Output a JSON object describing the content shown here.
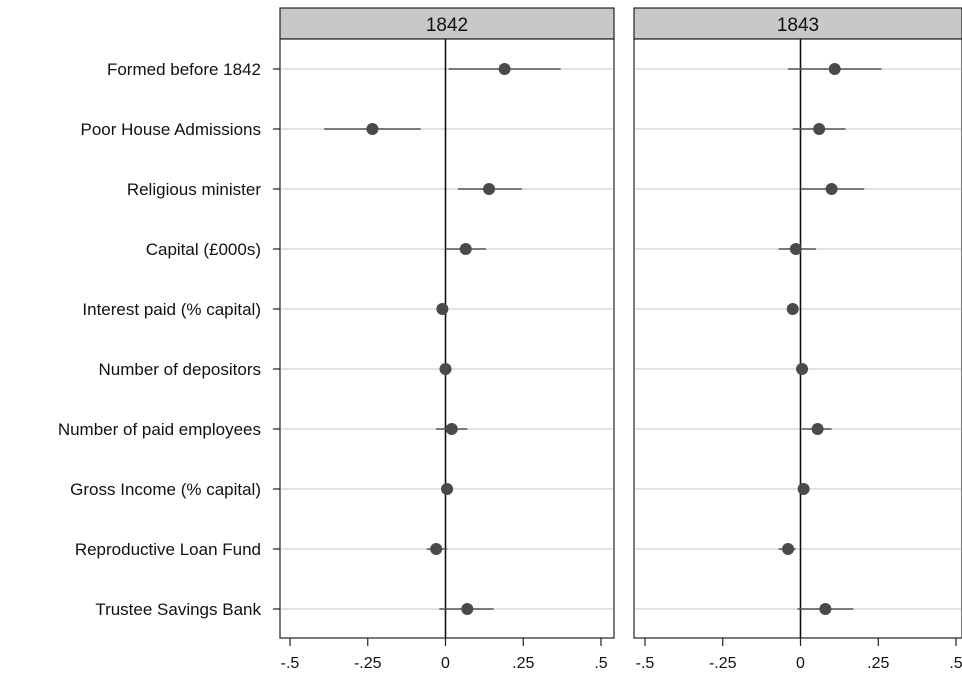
{
  "chart_data": {
    "type": "scatter",
    "subtype": "coefficient-plot-with-confidence-intervals",
    "categories": [
      "Formed before 1842",
      "Poor House Admissions",
      "Religious minister",
      "Capital (£000s)",
      "Interest paid (% capital)",
      "Number of depositors",
      "Number of paid employees",
      "Gross Income (% capital)",
      "Reproductive Loan Fund",
      "Trustee Savings Bank"
    ],
    "x_ticks": [
      -0.5,
      -0.25,
      0,
      0.25,
      0.5
    ],
    "x_tick_labels": [
      "-.5",
      "-.25",
      "0",
      ".25",
      ".5"
    ],
    "xlim": [
      -0.5,
      0.5
    ],
    "reference_line": 0,
    "grid": "horizontal",
    "colors": {
      "point": "#4a4a4a",
      "ci": "#555555",
      "strip": "#c8c8c8",
      "grid": "#d9d9d9"
    },
    "panels": [
      {
        "title": "1842",
        "estimates": [
          0.19,
          -0.235,
          0.14,
          0.065,
          -0.01,
          0.0,
          0.02,
          0.005,
          -0.03,
          0.07
        ],
        "ci_low": [
          0.01,
          -0.39,
          0.04,
          0.0,
          -0.015,
          -0.005,
          -0.03,
          -0.005,
          -0.06,
          -0.02
        ],
        "ci_high": [
          0.37,
          -0.08,
          0.245,
          0.13,
          -0.005,
          0.005,
          0.07,
          0.015,
          0.005,
          0.155
        ]
      },
      {
        "title": "1843",
        "estimates": [
          0.11,
          0.06,
          0.1,
          -0.015,
          -0.025,
          0.005,
          0.055,
          0.01,
          -0.04,
          0.08
        ],
        "ci_low": [
          -0.04,
          -0.025,
          0.0,
          -0.07,
          -0.03,
          0.0,
          0.005,
          0.005,
          -0.07,
          -0.01
        ],
        "ci_high": [
          0.26,
          0.145,
          0.205,
          0.05,
          -0.02,
          0.01,
          0.1,
          0.015,
          -0.015,
          0.17
        ]
      }
    ]
  }
}
